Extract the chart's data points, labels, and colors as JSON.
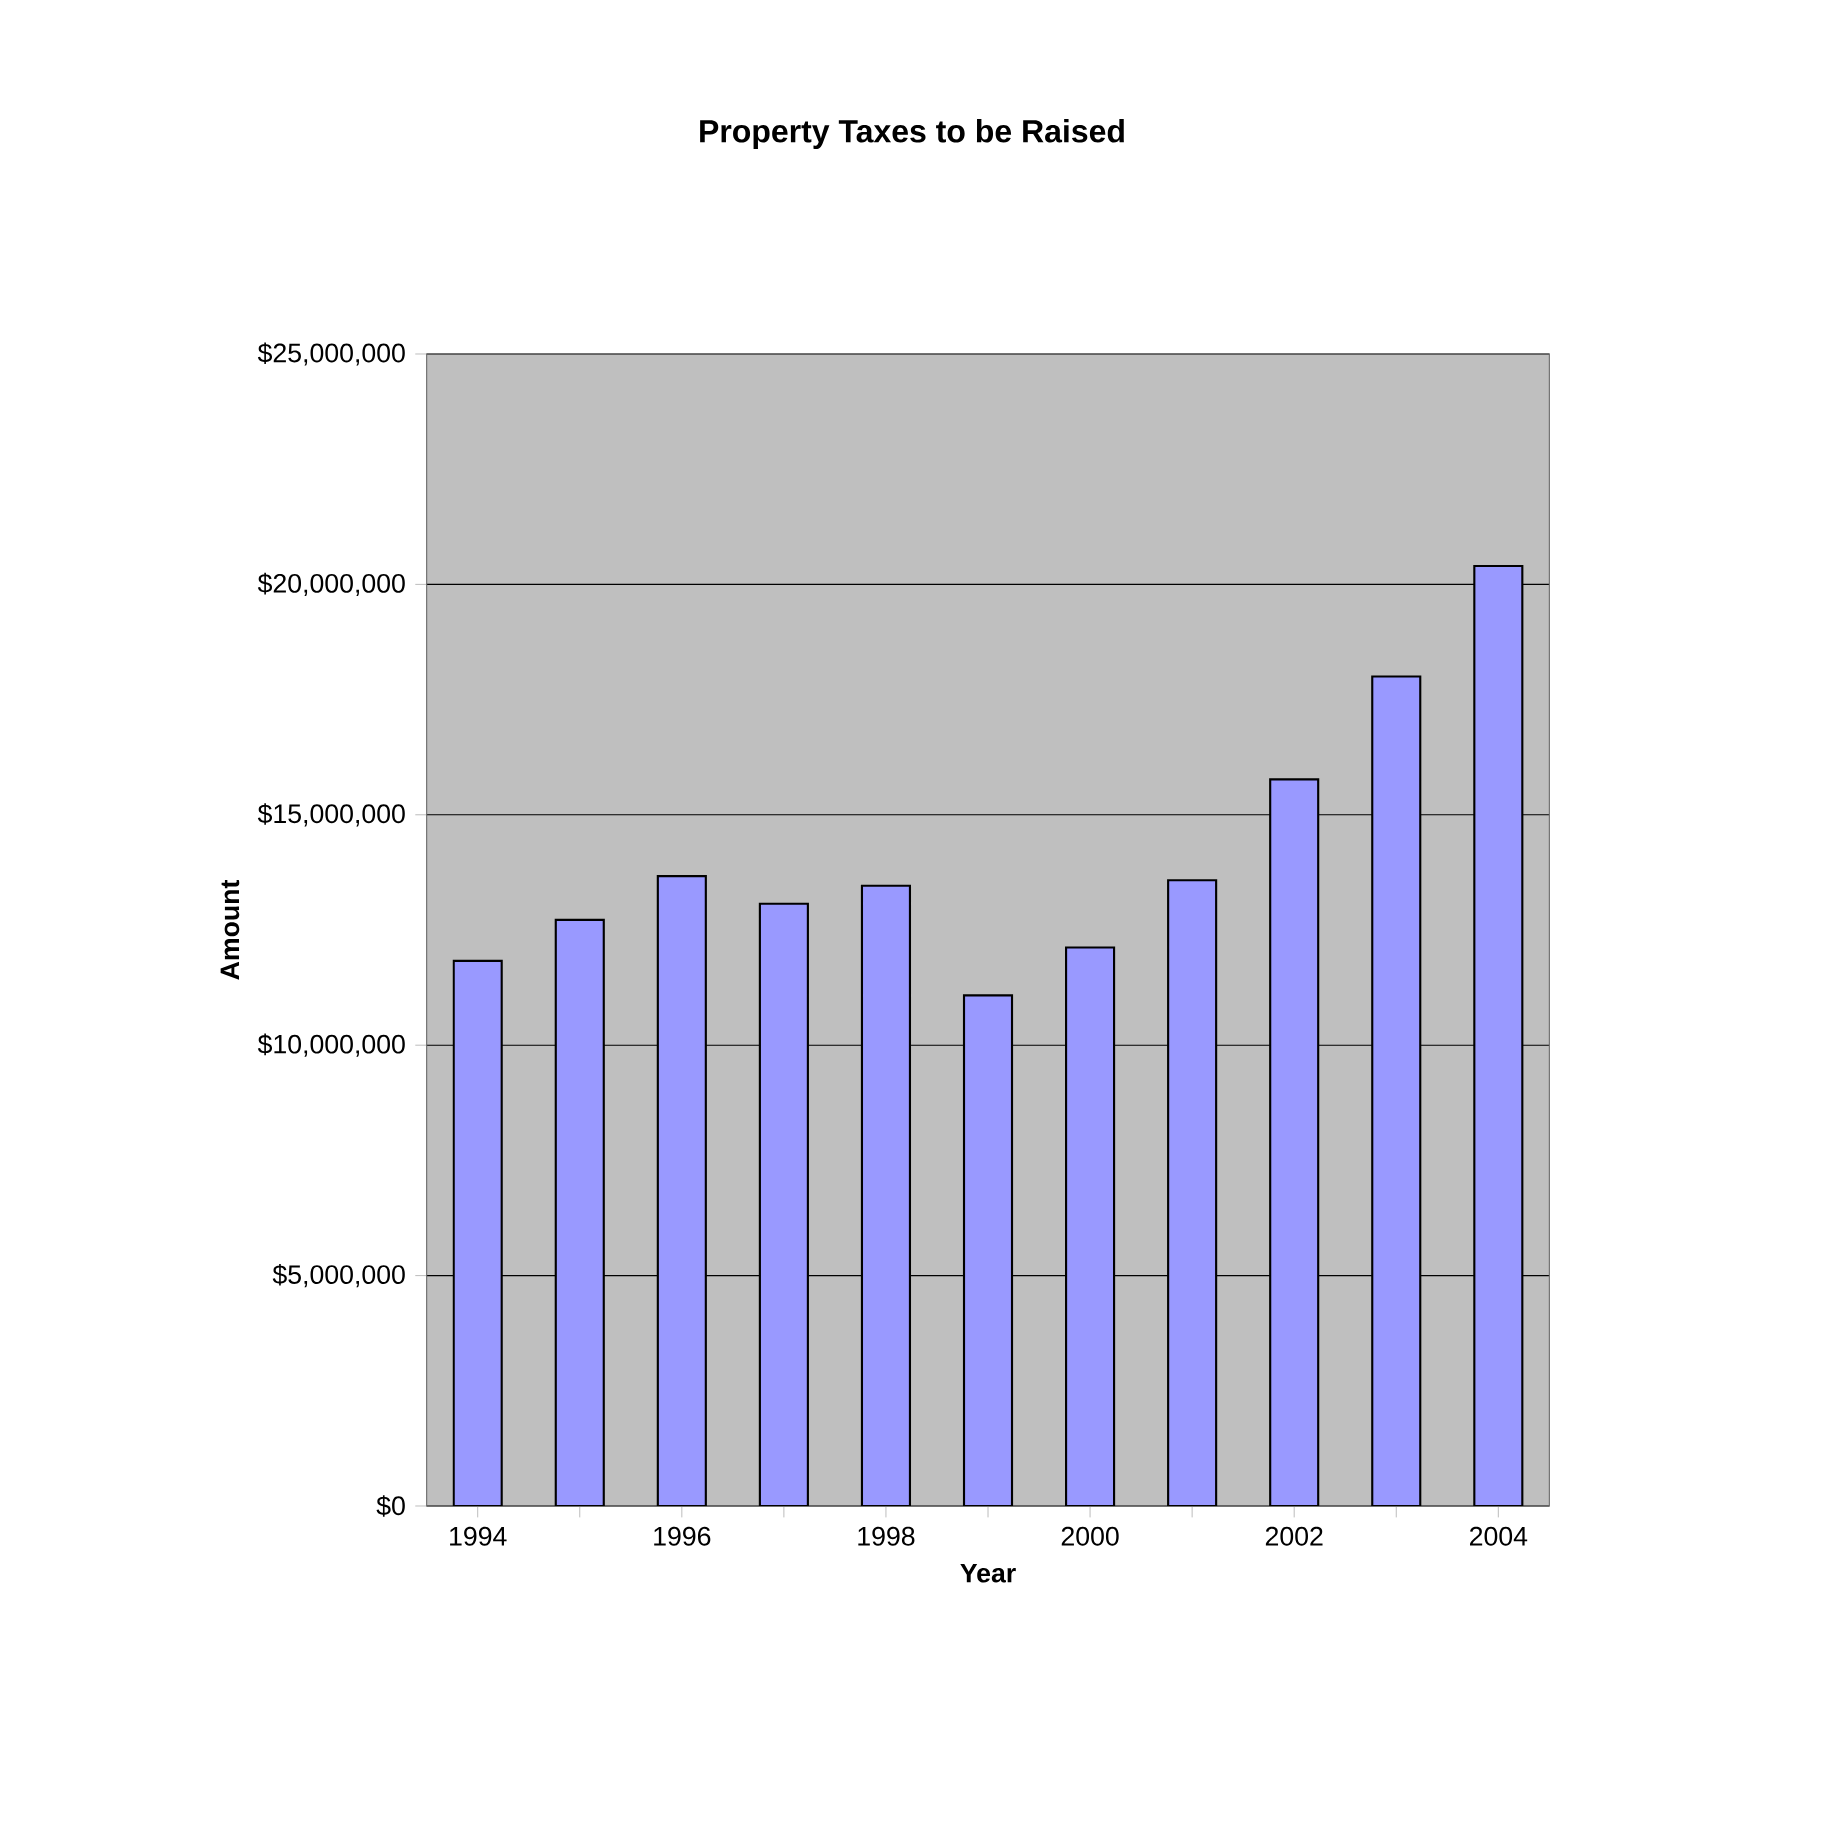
{
  "chart_data": {
    "type": "bar",
    "title": "Property Taxes to be Raised",
    "xlabel": "Year",
    "ylabel": "Amount",
    "categories": [
      "1994",
      null,
      "1996",
      null,
      "1998",
      null,
      "2000",
      null,
      "2002",
      null,
      "2004"
    ],
    "values": [
      11830000,
      12720000,
      13670000,
      13070000,
      13460000,
      11080000,
      12120000,
      13580000,
      15770000,
      18000000,
      20400000
    ],
    "color": "#9999ff",
    "ylim": [
      0,
      25000000
    ],
    "yticks": [
      {
        "value": 0,
        "label": "$0"
      },
      {
        "value": 5000000,
        "label": "$5,000,000"
      },
      {
        "value": 10000000,
        "label": "$10,000,000"
      },
      {
        "value": 15000000,
        "label": "$15,000,000"
      },
      {
        "value": 20000000,
        "label": "$20,000,000"
      },
      {
        "value": 25000000,
        "label": "$25,000,000"
      }
    ],
    "grid": "y"
  }
}
